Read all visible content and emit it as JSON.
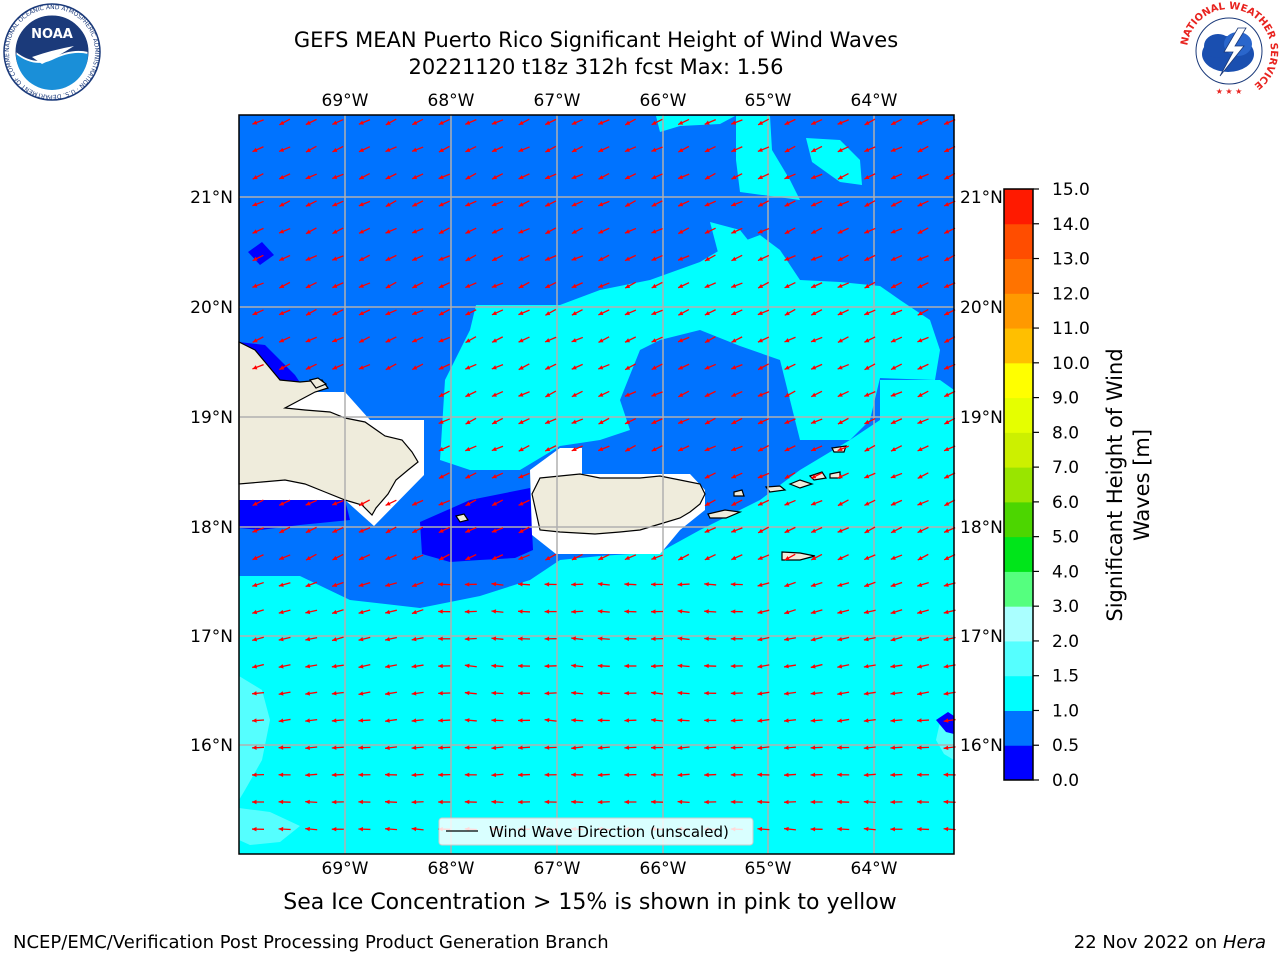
{
  "title_line1": "GEFS MEAN Puerto Rico Significant Height of Wind Waves",
  "title_line2": "20221120 t18z 312h fcst   Max: 1.56",
  "noaa_logo_text": "NOAA",
  "noaa_logo_ring": "NATIONAL OCEANIC AND ATMOSPHERIC ADMINISTRATION · U.S. DEPARTMENT OF COMMERCE",
  "nws_logo_ring": "NATIONAL WEATHER SERVICE",
  "lon_labels": [
    "69°W",
    "68°W",
    "67°W",
    "66°W",
    "65°W",
    "64°W"
  ],
  "lat_labels": [
    "21°N",
    "20°N",
    "19°N",
    "18°N",
    "17°N",
    "16°N"
  ],
  "legend_label": "Wind Wave Direction (unscaled)",
  "colorbar": {
    "label": "Significant Height of Wind Waves [m]",
    "label_line1": "Significant Height of Wind",
    "label_line2": "Waves [m]",
    "ticks": [
      "15.0",
      "14.0",
      "13.0",
      "12.0",
      "11.0",
      "10.0",
      "9.0",
      "8.0",
      "7.0",
      "6.0",
      "5.0",
      "4.0",
      "3.0",
      "2.0",
      "1.5",
      "1.0",
      "0.5",
      "0.0"
    ],
    "colors": [
      "#0000ff",
      "#0073ff",
      "#00ffff",
      "#55ffff",
      "#aaffff",
      "#55ff7f",
      "#00e51a",
      "#4cd600",
      "#99e500",
      "#ccf000",
      "#e5ff00",
      "#ffff00",
      "#ffbf00",
      "#ff9900",
      "#ff7300",
      "#ff4d00",
      "#ff1a00",
      "#ff0000"
    ]
  },
  "caption": "Sea Ice Concentration > 15% is shown in pink to yellow",
  "footer_left": "NCEP/EMC/Verification Post Processing Product Generation Branch",
  "footer_right_date": "22 Nov 2022 on ",
  "footer_right_host": "Hera",
  "colors": {
    "band_0_05": "#0000ff",
    "band_05_1": "#0073ff",
    "band_1_15": "#00ffff",
    "band_15_2": "#55ffff",
    "land": "#efecdc",
    "arrows": "#ff0000",
    "grid": "#b0b0b0"
  }
}
